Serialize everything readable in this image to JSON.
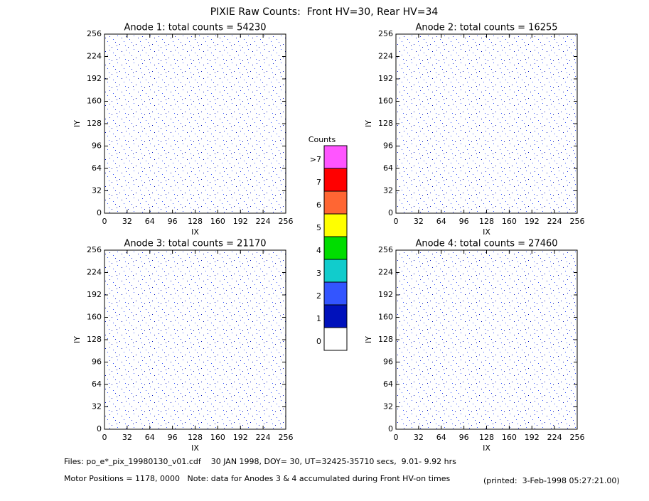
{
  "title": "PIXIE Raw Counts:  Front HV=30, Rear HV=34",
  "panels": [
    {
      "title": "Anode 1: total counts = 54230",
      "x_label": "IX",
      "y_label": "IY",
      "xlim": [
        0,
        256
      ],
      "ylim": [
        0,
        256
      ],
      "xticks": [
        0,
        32,
        64,
        96,
        128,
        160,
        192,
        224,
        256
      ],
      "yticks": [
        0,
        32,
        64,
        96,
        128,
        160,
        192,
        224,
        256
      ]
    },
    {
      "title": "Anode 2: total counts = 16255",
      "x_label": "IX",
      "y_label": "IY",
      "xlim": [
        0,
        256
      ],
      "ylim": [
        0,
        256
      ],
      "xticks": [
        0,
        32,
        64,
        96,
        128,
        160,
        192,
        224,
        256
      ],
      "yticks": [
        0,
        32,
        64,
        96,
        128,
        160,
        192,
        224,
        256
      ]
    },
    {
      "title": "Anode 3: total counts = 21170",
      "x_label": "IX",
      "y_label": "IY",
      "xlim": [
        0,
        256
      ],
      "ylim": [
        0,
        256
      ],
      "xticks": [
        0,
        32,
        64,
        96,
        128,
        160,
        192,
        224,
        256
      ],
      "yticks": [
        0,
        32,
        64,
        96,
        128,
        160,
        192,
        224,
        256
      ]
    },
    {
      "title": "Anode 4: total counts = 27460",
      "x_label": "IX",
      "y_label": "IY",
      "xlim": [
        0,
        256
      ],
      "ylim": [
        0,
        256
      ],
      "xticks": [
        0,
        32,
        64,
        96,
        128,
        160,
        192,
        224,
        256
      ],
      "yticks": [
        0,
        32,
        64,
        96,
        128,
        160,
        192,
        224,
        256
      ]
    }
  ],
  "colorbar": {
    "title": "Counts",
    "levels": [
      {
        "label": ">7",
        "color": "#ff55ff"
      },
      {
        "label": "7",
        "color": "#ff0000"
      },
      {
        "label": "6",
        "color": "#ff6633"
      },
      {
        "label": "5",
        "color": "#ffff00"
      },
      {
        "label": "4",
        "color": "#00dd00"
      },
      {
        "label": "3",
        "color": "#11cccc"
      },
      {
        "label": "2",
        "color": "#3355ff"
      },
      {
        "label": "1",
        "color": "#0011bb"
      },
      {
        "label": "0",
        "color": "#ffffff"
      }
    ]
  },
  "footer": {
    "files": "Files: po_e*_pix_19980130_v01.cdf    30 JAN 1998, DOY= 30, UT=32425-35710 secs,  9.01- 9.92 hrs",
    "motor": "Motor Positions = 1178, 0000   Note: data for Anodes 3 & 4 accumulated during Front HV-on times",
    "printed": "(printed:  3-Feb-1998 05:27:21.00)"
  }
}
